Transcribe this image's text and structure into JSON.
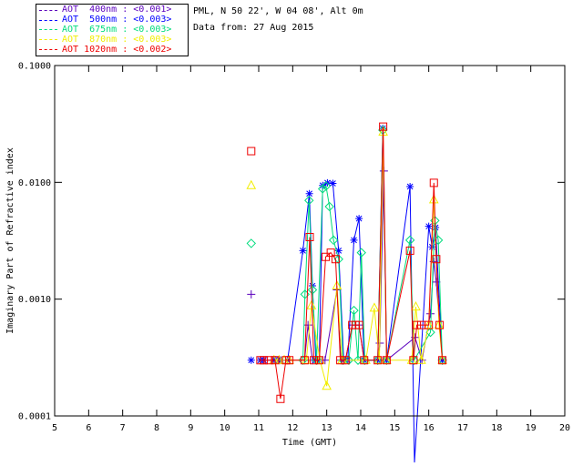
{
  "header": {
    "title_line1": "PML, N 50 22', W 04 08', Alt 0m",
    "title_line2": "Data from: 27 Aug 2015"
  },
  "legend": {
    "items": [
      {
        "label": "AOT  400nm : <0.001>",
        "color": "#5b00bd"
      },
      {
        "label": "AOT  500nm : <0.003>",
        "color": "#0000ff"
      },
      {
        "label": "AOT  675nm : <0.003>",
        "color": "#00dc7d"
      },
      {
        "label": "AOT  870nm : <0.003>",
        "color": "#f2ee00"
      },
      {
        "label": "AOT 1020nm : <0.002>",
        "color": "#ee0000"
      }
    ]
  },
  "chart_data": {
    "type": "line",
    "title": "",
    "xlabel": "Time (GMT)",
    "ylabel": "Imaginary Part of Refractive index",
    "x_axis": {
      "min": 5,
      "max": 20,
      "ticks": [
        5,
        6,
        7,
        8,
        9,
        10,
        11,
        12,
        13,
        14,
        15,
        16,
        17,
        18,
        19,
        20
      ]
    },
    "y_axis": {
      "scale": "log",
      "min": 0.0001,
      "max": 0.1,
      "ticks": [
        0.1,
        0.01,
        0.001,
        0.0001
      ],
      "tick_labels": [
        "0.1000",
        "0.0100",
        "0.0010",
        "0.0001"
      ]
    },
    "grid": false,
    "legend_position": "top-left-outside",
    "series": [
      {
        "name": "AOT 400nm",
        "color": "#5b00bd",
        "marker": "plus",
        "segments": [
          [
            [
              10.78,
              0.0011
            ]
          ],
          [
            [
              11.5,
              0.0003
            ],
            [
              11.62,
              0.0003
            ],
            [
              11.85,
              0.0003
            ],
            [
              12.35,
              0.0003
            ],
            [
              12.45,
              0.0006
            ],
            [
              12.58,
              0.0003
            ],
            [
              12.95,
              0.0003
            ],
            [
              13.3,
              0.0012
            ],
            [
              13.42,
              0.0003
            ],
            [
              13.55,
              0.0003
            ],
            [
              13.75,
              0.0006
            ],
            [
              13.85,
              0.0006
            ],
            [
              13.95,
              0.0006
            ],
            [
              14.1,
              0.0003
            ],
            [
              14.5,
              0.0003
            ],
            [
              14.56,
              0.00042
            ],
            [
              14.68,
              0.0125
            ],
            [
              14.76,
              0.0003
            ],
            [
              15.6,
              0.00047
            ],
            [
              15.8,
              0.0003
            ],
            [
              16.05,
              0.00075
            ],
            [
              16.15,
              0.0021
            ],
            [
              16.22,
              0.0014
            ],
            [
              16.4,
              0.0003
            ]
          ]
        ]
      },
      {
        "name": "AOT 500nm",
        "color": "#0000ff",
        "marker": "asterisk",
        "segments": [
          [
            [
              10.78,
              0.0003
            ]
          ],
          [
            [
              11.05,
              0.0003
            ],
            [
              11.15,
              0.0003
            ],
            [
              11.45,
              0.0003
            ],
            [
              11.55,
              0.0003
            ],
            [
              11.65,
              0.0003
            ],
            [
              11.85,
              0.0003
            ],
            [
              12.3,
              0.0026
            ],
            [
              12.49,
              0.008
            ],
            [
              12.58,
              0.0013
            ],
            [
              12.68,
              0.0003
            ],
            [
              12.78,
              0.0003
            ],
            [
              12.88,
              0.0094
            ],
            [
              13.02,
              0.0099
            ],
            [
              13.18,
              0.0098
            ],
            [
              13.35,
              0.0026
            ],
            [
              13.5,
              0.0003
            ],
            [
              13.62,
              0.0003
            ],
            [
              13.8,
              0.0032
            ],
            [
              13.95,
              0.0049
            ],
            [
              14.1,
              0.0003
            ],
            [
              14.5,
              0.0003
            ],
            [
              14.65,
              0.029
            ],
            [
              14.76,
              0.0003
            ],
            [
              15.45,
              0.0092
            ],
            [
              15.58,
              4e-05
            ],
            [
              16.0,
              0.0042
            ],
            [
              16.1,
              0.0028
            ],
            [
              16.2,
              0.0041
            ],
            [
              16.4,
              0.0003
            ]
          ]
        ]
      },
      {
        "name": "AOT 675nm",
        "color": "#00dc7d",
        "marker": "diamond",
        "segments": [
          [
            [
              10.78,
              0.003
            ]
          ],
          [
            [
              12.3,
              0.0003
            ],
            [
              12.36,
              0.0011
            ],
            [
              12.48,
              0.007
            ],
            [
              12.58,
              0.0012
            ],
            [
              12.7,
              0.0003
            ],
            [
              12.88,
              0.0088
            ],
            [
              12.98,
              0.0093
            ],
            [
              13.08,
              0.0062
            ],
            [
              13.2,
              0.0032
            ],
            [
              13.35,
              0.0022
            ],
            [
              13.48,
              0.0003
            ],
            [
              13.65,
              0.0003
            ],
            [
              13.8,
              0.0008
            ],
            [
              13.92,
              0.0003
            ],
            [
              14.02,
              0.0025
            ],
            [
              14.12,
              0.0003
            ],
            [
              14.5,
              0.0003
            ],
            [
              14.65,
              0.028
            ],
            [
              14.76,
              0.0003
            ],
            [
              15.45,
              0.0032
            ],
            [
              15.57,
              0.0003
            ],
            [
              16.05,
              0.00052
            ],
            [
              16.18,
              0.0047
            ],
            [
              16.28,
              0.0032
            ],
            [
              16.4,
              0.0003
            ]
          ]
        ]
      },
      {
        "name": "AOT 870nm",
        "color": "#f2ee00",
        "marker": "triangle",
        "segments": [
          [
            [
              10.78,
              0.0094
            ]
          ],
          [
            [
              11.45,
              0.0003
            ],
            [
              11.6,
              0.0003
            ],
            [
              11.75,
              0.0003
            ],
            [
              11.9,
              0.0003
            ],
            [
              12.4,
              0.0003
            ],
            [
              12.55,
              0.00088
            ],
            [
              12.8,
              0.0003
            ],
            [
              13.0,
              0.00018
            ],
            [
              13.3,
              0.0013
            ],
            [
              13.45,
              0.0003
            ],
            [
              14.15,
              0.0003
            ],
            [
              14.4,
              0.00084
            ],
            [
              14.55,
              0.0003
            ],
            [
              14.66,
              0.027
            ],
            [
              14.76,
              0.0003
            ],
            [
              15.5,
              0.0003
            ],
            [
              15.62,
              0.00086
            ],
            [
              15.78,
              0.0003
            ],
            [
              16.0,
              0.0006
            ],
            [
              16.15,
              0.0071
            ],
            [
              16.3,
              0.0006
            ],
            [
              16.4,
              0.0003
            ]
          ]
        ]
      },
      {
        "name": "AOT 1020nm",
        "color": "#ee0000",
        "marker": "square",
        "segments": [
          [
            [
              10.78,
              0.0185
            ]
          ],
          [
            [
              11.05,
              0.0003
            ],
            [
              11.15,
              0.0003
            ],
            [
              11.3,
              0.0003
            ],
            [
              11.48,
              0.0003
            ],
            [
              11.64,
              0.00014
            ],
            [
              11.8,
              0.0003
            ],
            [
              11.9,
              0.0003
            ],
            [
              12.35,
              0.0003
            ],
            [
              12.5,
              0.0034
            ],
            [
              12.62,
              0.0003
            ],
            [
              12.78,
              0.0003
            ],
            [
              12.97,
              0.0023
            ],
            [
              13.12,
              0.0025
            ],
            [
              13.26,
              0.0022
            ],
            [
              13.4,
              0.0003
            ],
            [
              13.55,
              0.0003
            ],
            [
              13.75,
              0.0006
            ],
            [
              13.85,
              0.0006
            ],
            [
              13.95,
              0.0006
            ],
            [
              14.1,
              0.0003
            ],
            [
              14.5,
              0.0003
            ],
            [
              14.66,
              0.03
            ],
            [
              14.76,
              0.0003
            ],
            [
              15.45,
              0.0026
            ],
            [
              15.55,
              0.0003
            ],
            [
              15.65,
              0.0006
            ],
            [
              15.78,
              0.0006
            ],
            [
              16.0,
              0.0006
            ],
            [
              16.15,
              0.0099
            ],
            [
              16.22,
              0.0022
            ],
            [
              16.32,
              0.0006
            ],
            [
              16.4,
              0.0003
            ]
          ]
        ]
      }
    ]
  }
}
